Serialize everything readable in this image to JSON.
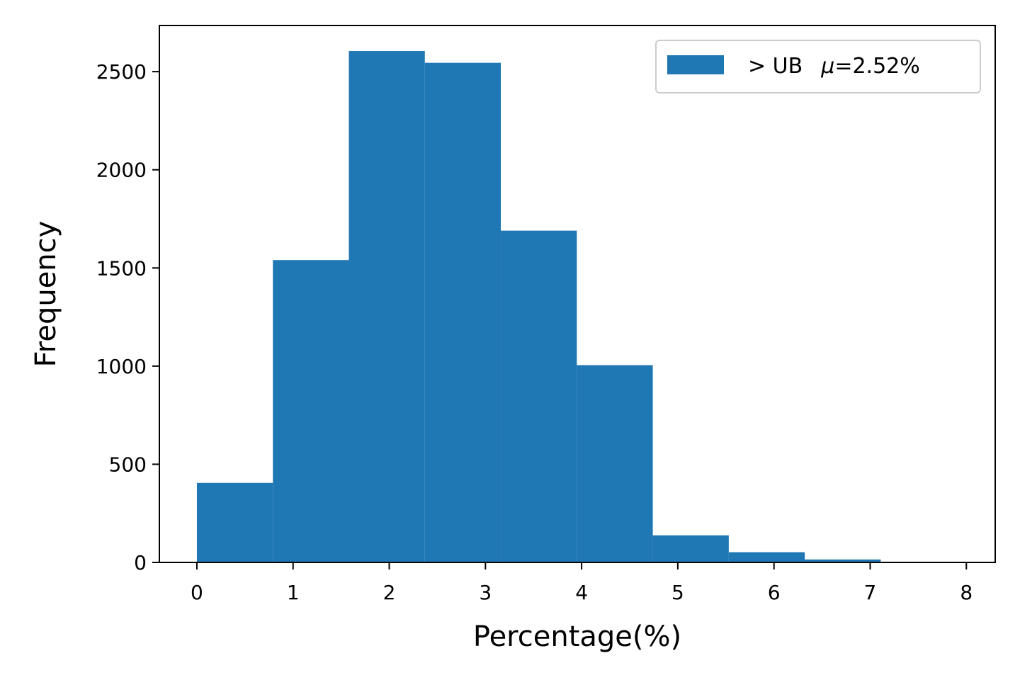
{
  "chart_data": {
    "type": "bar",
    "subtype": "histogram",
    "bins": [
      {
        "start": 0.0,
        "end": 0.79,
        "count": 405
      },
      {
        "start": 0.79,
        "end": 1.58,
        "count": 1540
      },
      {
        "start": 1.58,
        "end": 2.37,
        "count": 2605
      },
      {
        "start": 2.37,
        "end": 3.16,
        "count": 2545
      },
      {
        "start": 3.16,
        "end": 3.95,
        "count": 1690
      },
      {
        "start": 3.95,
        "end": 4.74,
        "count": 1005
      },
      {
        "start": 4.74,
        "end": 5.53,
        "count": 138
      },
      {
        "start": 5.53,
        "end": 6.32,
        "count": 52
      },
      {
        "start": 6.32,
        "end": 7.11,
        "count": 15
      },
      {
        "start": 7.11,
        "end": 7.9,
        "count": 3
      }
    ],
    "series": [
      {
        "name": "> UB  μ=2.52%",
        "color": "#1f77b4"
      }
    ],
    "xlabel": "Percentage(%)",
    "ylabel": "Frequency",
    "xlim": [
      -0.39,
      8.3
    ],
    "ylim": [
      0,
      2735
    ],
    "xticks": [
      0,
      1,
      2,
      3,
      4,
      5,
      6,
      7,
      8
    ],
    "xtick_labels": [
      "0",
      "1",
      "2",
      "3",
      "4",
      "5",
      "6",
      "7",
      "8"
    ],
    "yticks": [
      0,
      500,
      1000,
      1500,
      2000,
      2500
    ],
    "ytick_labels": [
      "0",
      "500",
      "1000",
      "1500",
      "2000",
      "2500"
    ],
    "legend_label_prefix": "> UB",
    "legend_label_mu": "μ",
    "legend_label_value": "=2.52%",
    "legend_position": "top-right",
    "grid": false,
    "bar_color": "#1f77b4"
  }
}
